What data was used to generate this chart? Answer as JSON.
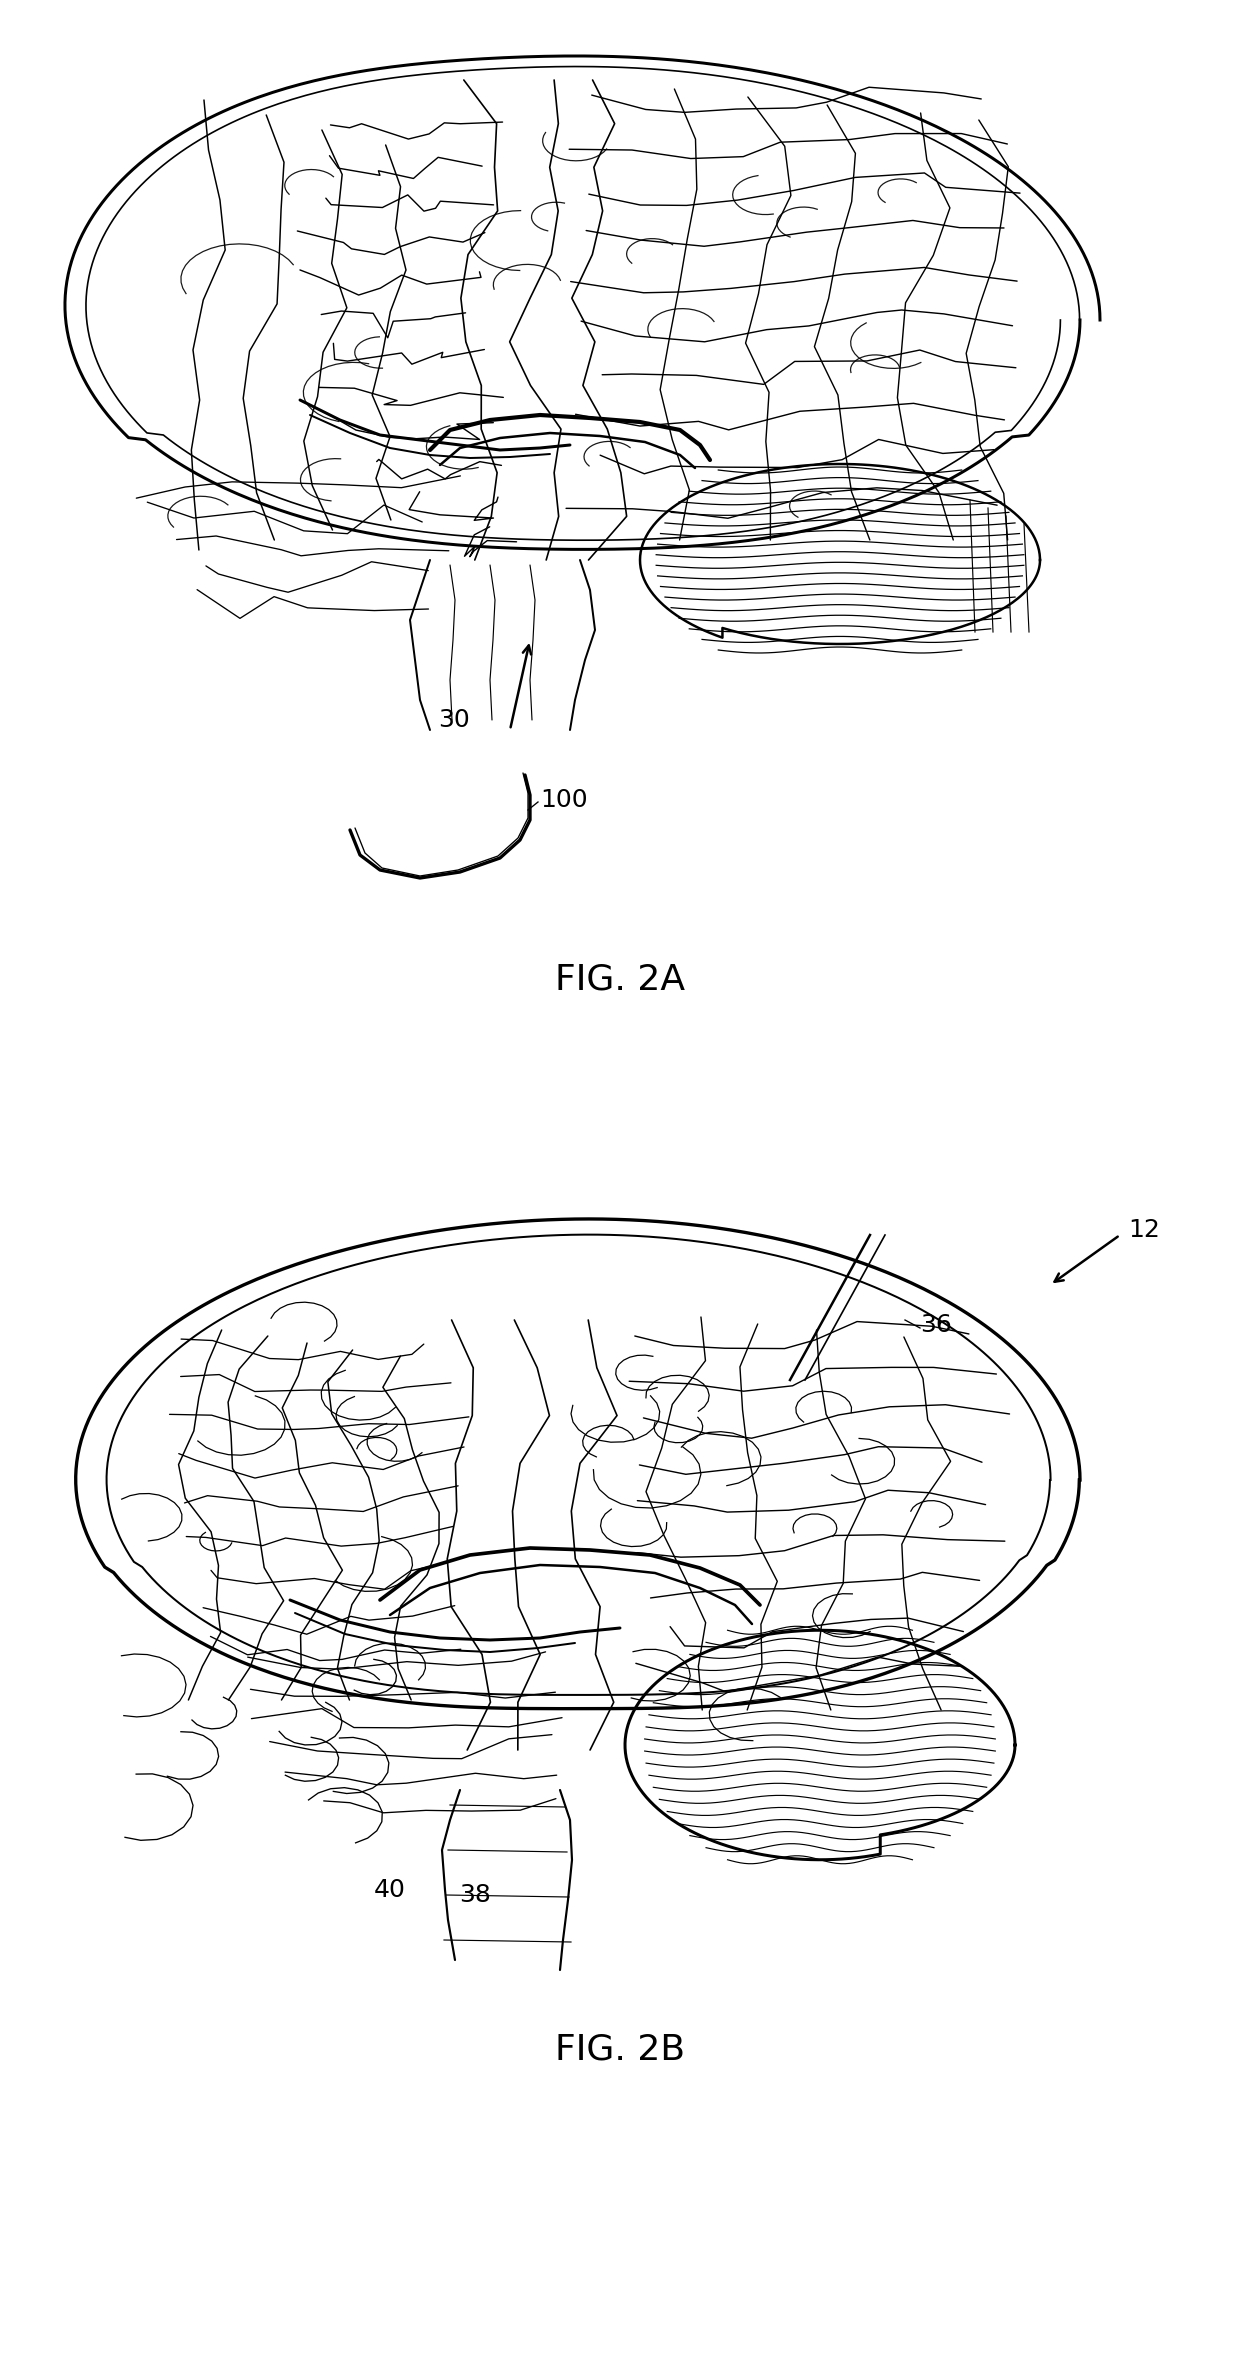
{
  "background_color": "#ffffff",
  "fig_width": 12.4,
  "fig_height": 23.59,
  "dpi": 100,
  "line_color": "#000000",
  "line_width": 1.2,
  "fig2a_label": "FIG. 2A",
  "fig2b_label": "FIG. 2B",
  "label_fontsize": 26,
  "annotation_fontsize": 18
}
